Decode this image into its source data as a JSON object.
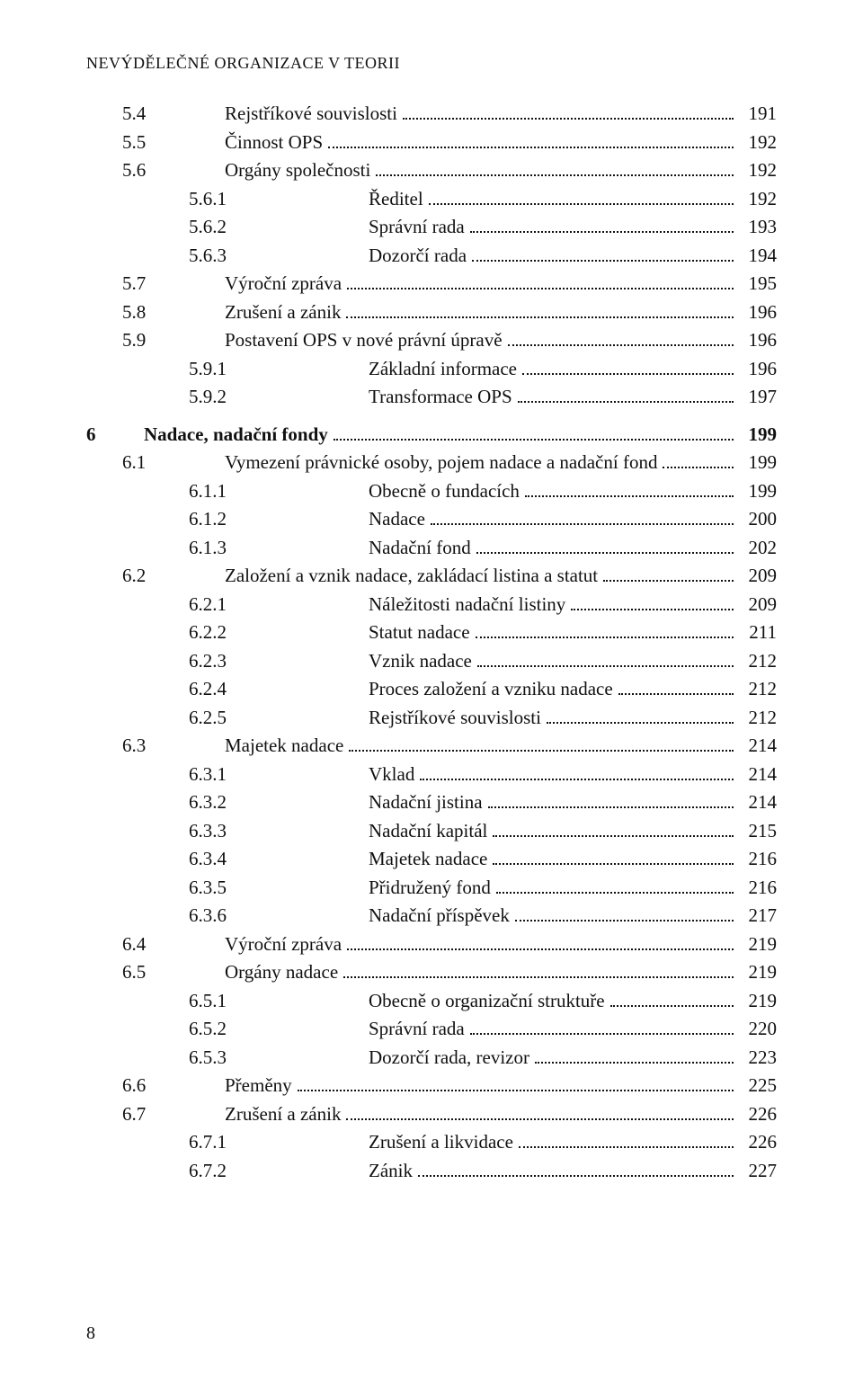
{
  "running_head": "NEVÝDĚLEČNÉ ORGANIZACE V TEORII",
  "page_number": "8",
  "style": {
    "background_color": "#ffffff",
    "text_color": "#111111",
    "font_family": "Times New Roman",
    "body_font_size_pt": 16,
    "running_head_font_size_pt": 13,
    "leader_style": "dotted"
  },
  "toc": [
    {
      "num": "5.4",
      "title": "Rejstříkové souvislosti",
      "page": "191",
      "indent": 1
    },
    {
      "num": "5.5",
      "title": "Činnost OPS",
      "page": "192",
      "indent": 1
    },
    {
      "num": "5.6",
      "title": "Orgány společnosti",
      "page": "192",
      "indent": 1
    },
    {
      "num": "5.6.1",
      "title": "Ředitel",
      "page": "192",
      "indent": 2
    },
    {
      "num": "5.6.2",
      "title": "Správní rada",
      "page": "193",
      "indent": 2
    },
    {
      "num": "5.6.3",
      "title": "Dozorčí rada",
      "page": "194",
      "indent": 2
    },
    {
      "num": "5.7",
      "title": "Výroční zpráva",
      "page": "195",
      "indent": 1
    },
    {
      "num": "5.8",
      "title": "Zrušení a zánik",
      "page": "196",
      "indent": 1
    },
    {
      "num": "5.9",
      "title": "Postavení OPS v nové právní úpravě",
      "page": "196",
      "indent": 1
    },
    {
      "num": "5.9.1",
      "title": "Základní informace",
      "page": "196",
      "indent": 2
    },
    {
      "num": "5.9.2",
      "title": "Transformace OPS",
      "page": "197",
      "indent": 2
    },
    {
      "spacer": true
    },
    {
      "num": "6",
      "title": "Nadace, nadační fondy",
      "page": "199",
      "indent": 0,
      "bold": true
    },
    {
      "num": "6.1",
      "title": "Vymezení právnické osoby, pojem nadace a nadační fond",
      "page": "199",
      "indent": 1
    },
    {
      "num": "6.1.1",
      "title": "Obecně o fundacích",
      "page": "199",
      "indent": 2
    },
    {
      "num": "6.1.2",
      "title": "Nadace",
      "page": "200",
      "indent": 2
    },
    {
      "num": "6.1.3",
      "title": "Nadační fond",
      "page": "202",
      "indent": 2
    },
    {
      "num": "6.2",
      "title": "Založení a vznik nadace, zakládací listina a statut",
      "page": "209",
      "indent": 1
    },
    {
      "num": "6.2.1",
      "title": "Náležitosti nadační listiny",
      "page": "209",
      "indent": 2
    },
    {
      "num": "6.2.2",
      "title": "Statut nadace",
      "page": "211",
      "indent": 2
    },
    {
      "num": "6.2.3",
      "title": "Vznik nadace",
      "page": "212",
      "indent": 2
    },
    {
      "num": "6.2.4",
      "title": "Proces založení a vzniku nadace",
      "page": "212",
      "indent": 2
    },
    {
      "num": "6.2.5",
      "title": "Rejstříkové souvislosti",
      "page": "212",
      "indent": 2
    },
    {
      "num": "6.3",
      "title": "Majetek nadace",
      "page": "214",
      "indent": 1
    },
    {
      "num": "6.3.1",
      "title": "Vklad",
      "page": "214",
      "indent": 2
    },
    {
      "num": "6.3.2",
      "title": "Nadační jistina",
      "page": "214",
      "indent": 2
    },
    {
      "num": "6.3.3",
      "title": "Nadační kapitál",
      "page": "215",
      "indent": 2
    },
    {
      "num": "6.3.4",
      "title": "Majetek nadace",
      "page": "216",
      "indent": 2
    },
    {
      "num": "6.3.5",
      "title": "Přidružený fond",
      "page": "216",
      "indent": 2
    },
    {
      "num": "6.3.6",
      "title": "Nadační příspěvek",
      "page": "217",
      "indent": 2
    },
    {
      "num": "6.4",
      "title": "Výroční zpráva",
      "page": "219",
      "indent": 1
    },
    {
      "num": "6.5",
      "title": "Orgány nadace",
      "page": "219",
      "indent": 1
    },
    {
      "num": "6.5.1",
      "title": "Obecně o organizační struktuře",
      "page": "219",
      "indent": 2
    },
    {
      "num": "6.5.2",
      "title": "Správní rada",
      "page": "220",
      "indent": 2
    },
    {
      "num": "6.5.3",
      "title": "Dozorčí rada, revizor",
      "page": "223",
      "indent": 2
    },
    {
      "num": "6.6",
      "title": "Přeměny",
      "page": "225",
      "indent": 1
    },
    {
      "num": "6.7",
      "title": "Zrušení a zánik",
      "page": "226",
      "indent": 1
    },
    {
      "num": "6.7.1",
      "title": "Zrušení a likvidace",
      "page": "226",
      "indent": 2
    },
    {
      "num": "6.7.2",
      "title": "Zánik",
      "page": "227",
      "indent": 2
    }
  ]
}
